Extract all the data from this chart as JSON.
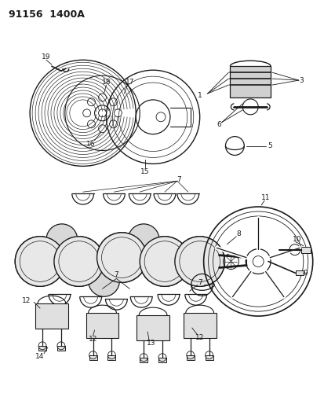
{
  "title": "91156  1400A",
  "bg_color": "#ffffff",
  "fg_color": "#1a1a1a",
  "figsize": [
    4.14,
    5.33
  ],
  "dpi": 100,
  "lw_main": 0.9,
  "lw_thin": 0.5,
  "label_fs": 6.5
}
